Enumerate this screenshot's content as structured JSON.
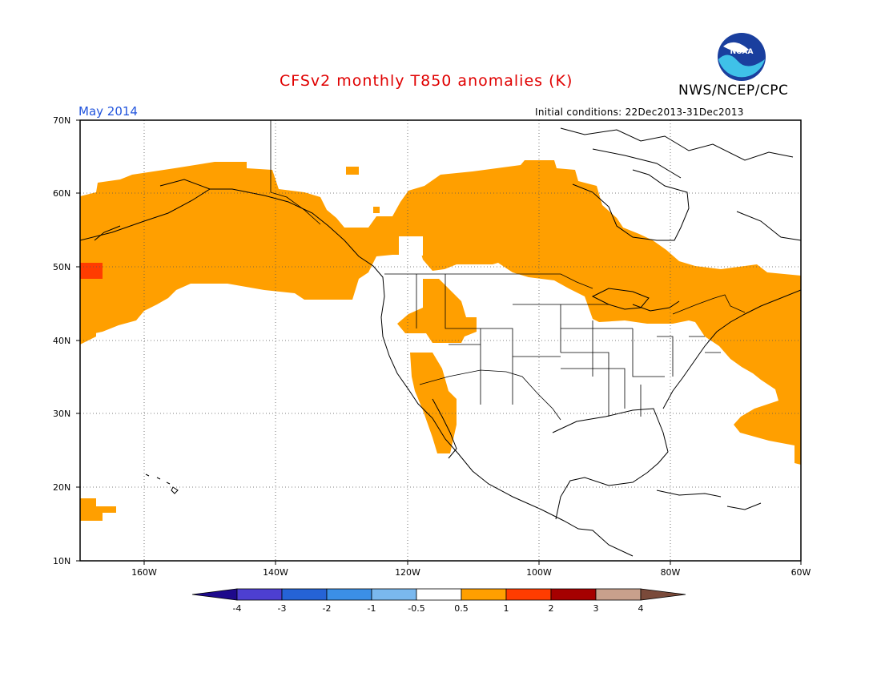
{
  "title": "CFSv2 monthly T850 anomalies (K)",
  "month_label": "May 2014",
  "agency": "NWS/NCEP/CPC",
  "initial_conditions": "Initial conditions: 22Dec2013-31Dec2013",
  "logo_text": "NOAA",
  "map": {
    "lat_labels": [
      "70N",
      "60N",
      "50N",
      "40N",
      "30N",
      "20N",
      "10N"
    ],
    "lon_labels": [
      "160W",
      "140W",
      "120W",
      "100W",
      "80W",
      "60W"
    ]
  },
  "colorbar": {
    "tick_labels": [
      "-4",
      "-3",
      "-2",
      "-1",
      "-0.5",
      "0.5",
      "1",
      "2",
      "3",
      "4"
    ],
    "colors": [
      "#1e0a8c",
      "#4d3fd1",
      "#2563d6",
      "#3b8fe6",
      "#7ab8ee",
      "#ffffff",
      "#ff9f00",
      "#ff3c00",
      "#a50000",
      "#c8a08c",
      "#7a4a3a"
    ]
  },
  "anomaly_colors": {
    "level_0_5_to_1": "#ff9f00",
    "level_1_to_2": "#ff3c00"
  }
}
